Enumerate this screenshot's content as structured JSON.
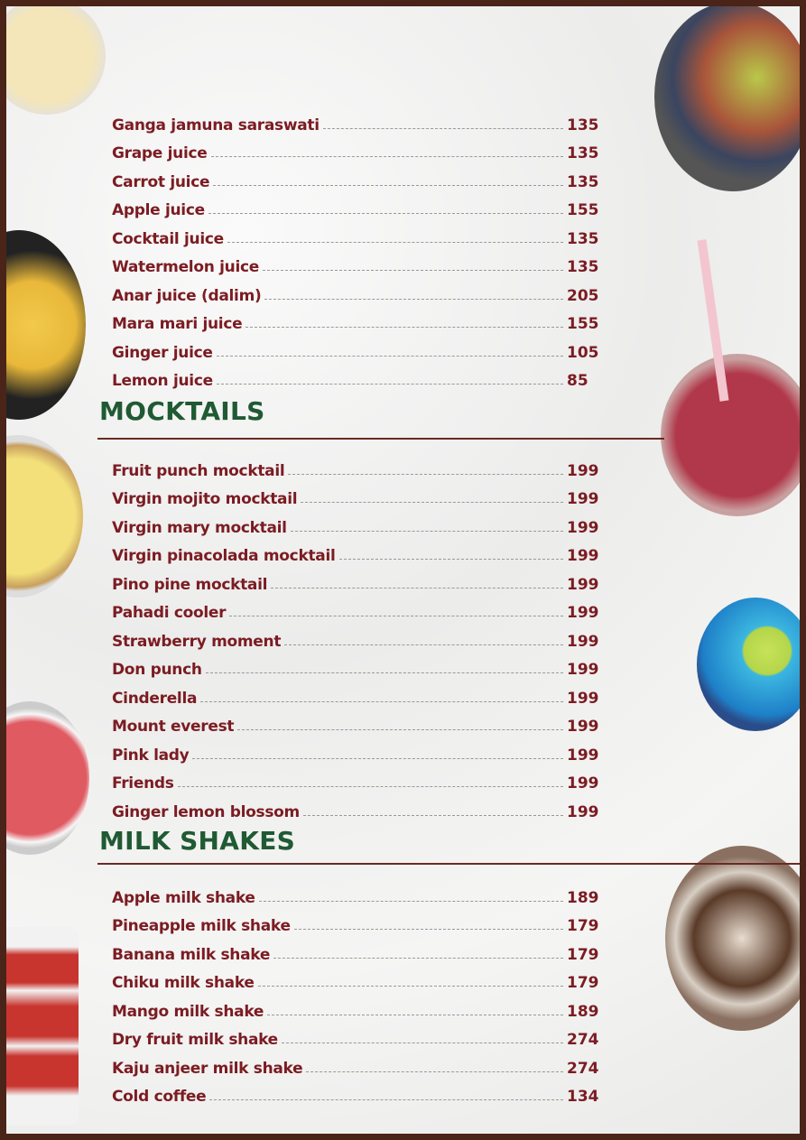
{
  "juices": {
    "items": [
      {
        "name": "Ganga jamuna saraswati",
        "price": "135"
      },
      {
        "name": "Grape juice",
        "price": "135"
      },
      {
        "name": "Carrot juice",
        "price": "135"
      },
      {
        "name": "Apple juice",
        "price": "155"
      },
      {
        "name": "Cocktail juice",
        "price": "135"
      },
      {
        "name": "Watermelon juice",
        "price": "135"
      },
      {
        "name": "Anar juice (dalim)",
        "price": "205"
      },
      {
        "name": "Mara mari juice",
        "price": "155"
      },
      {
        "name": "Ginger juice",
        "price": "105"
      },
      {
        "name": "Lemon juice",
        "price": "85"
      }
    ]
  },
  "mocktails": {
    "title": "MOCKTAILS",
    "items": [
      {
        "name": "Fruit punch mocktail",
        "price": "199"
      },
      {
        "name": "Virgin mojito mocktail",
        "price": "199"
      },
      {
        "name": "Virgin mary mocktail",
        "price": "199"
      },
      {
        "name": "Virgin pinacolada mocktail",
        "price": "199"
      },
      {
        "name": "Pino pine mocktail",
        "price": "199"
      },
      {
        "name": "Pahadi cooler",
        "price": "199"
      },
      {
        "name": "Strawberry moment",
        "price": "199"
      },
      {
        "name": "Don punch",
        "price": "199"
      },
      {
        "name": "Cinderella",
        "price": "199"
      },
      {
        "name": "Mount everest",
        "price": "199"
      },
      {
        "name": "Pink lady",
        "price": "199"
      },
      {
        "name": "Friends",
        "price": "199"
      },
      {
        "name": "Ginger lemon blossom",
        "price": "199"
      }
    ]
  },
  "milk_shakes": {
    "title": "MILK SHAKES",
    "items": [
      {
        "name": "Apple milk shake",
        "price": "189"
      },
      {
        "name": "Pineapple milk shake",
        "price": "179"
      },
      {
        "name": "Banana milk shake",
        "price": "179"
      },
      {
        "name": "Chiku milk shake",
        "price": "179"
      },
      {
        "name": "Mango milk shake",
        "price": "189"
      },
      {
        "name": "Dry fruit milk shake",
        "price": "274"
      },
      {
        "name": "Kaju anjeer milk shake",
        "price": "274"
      },
      {
        "name": "Cold coffee",
        "price": "134"
      }
    ]
  },
  "colors": {
    "item_text": "#7b1c22",
    "heading": "#1f5a33",
    "frame": "#4a2418"
  }
}
